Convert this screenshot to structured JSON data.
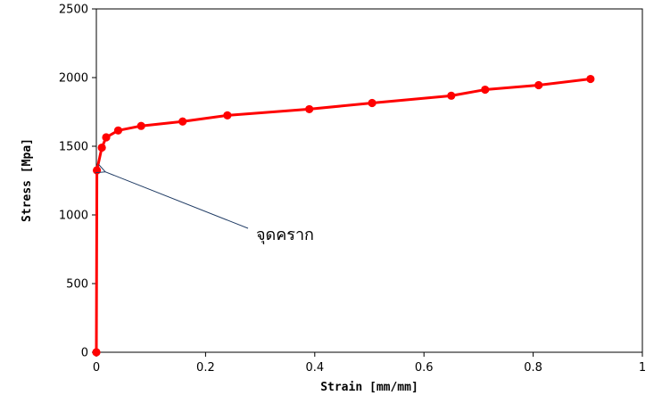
{
  "chart_data": {
    "type": "line",
    "title": "",
    "xlabel": "Strain [mm/mm]",
    "ylabel": "Stress [Mpa]",
    "xlim": [
      0,
      1
    ],
    "ylim": [
      0,
      2500
    ],
    "xticks": [
      0,
      0.2,
      0.4,
      0.6,
      0.8,
      1
    ],
    "xtick_labels": [
      "0",
      "0.2",
      "0.4",
      "0.6",
      "0.8",
      "1"
    ],
    "yticks": [
      0,
      500,
      1000,
      1500,
      2000,
      2500
    ],
    "ytick_labels": [
      "0",
      "500",
      "1000",
      "1500",
      "2000",
      "2500"
    ],
    "grid": false,
    "legend": "none",
    "series": [
      {
        "color": "#ff0000",
        "x": [
          0,
          0.001,
          0.01,
          0.018,
          0.04,
          0.082,
          0.158,
          0.24,
          0.39,
          0.505,
          0.65,
          0.712,
          0.81,
          0.905
        ],
        "y": [
          0,
          1325,
          1490,
          1565,
          1615,
          1648,
          1680,
          1725,
          1770,
          1815,
          1868,
          1912,
          1945,
          1990
        ]
      }
    ],
    "annotations": [
      {
        "text": "จุดคราก",
        "arrow_to": {
          "x": 0.018,
          "y": 1320
        }
      }
    ]
  }
}
